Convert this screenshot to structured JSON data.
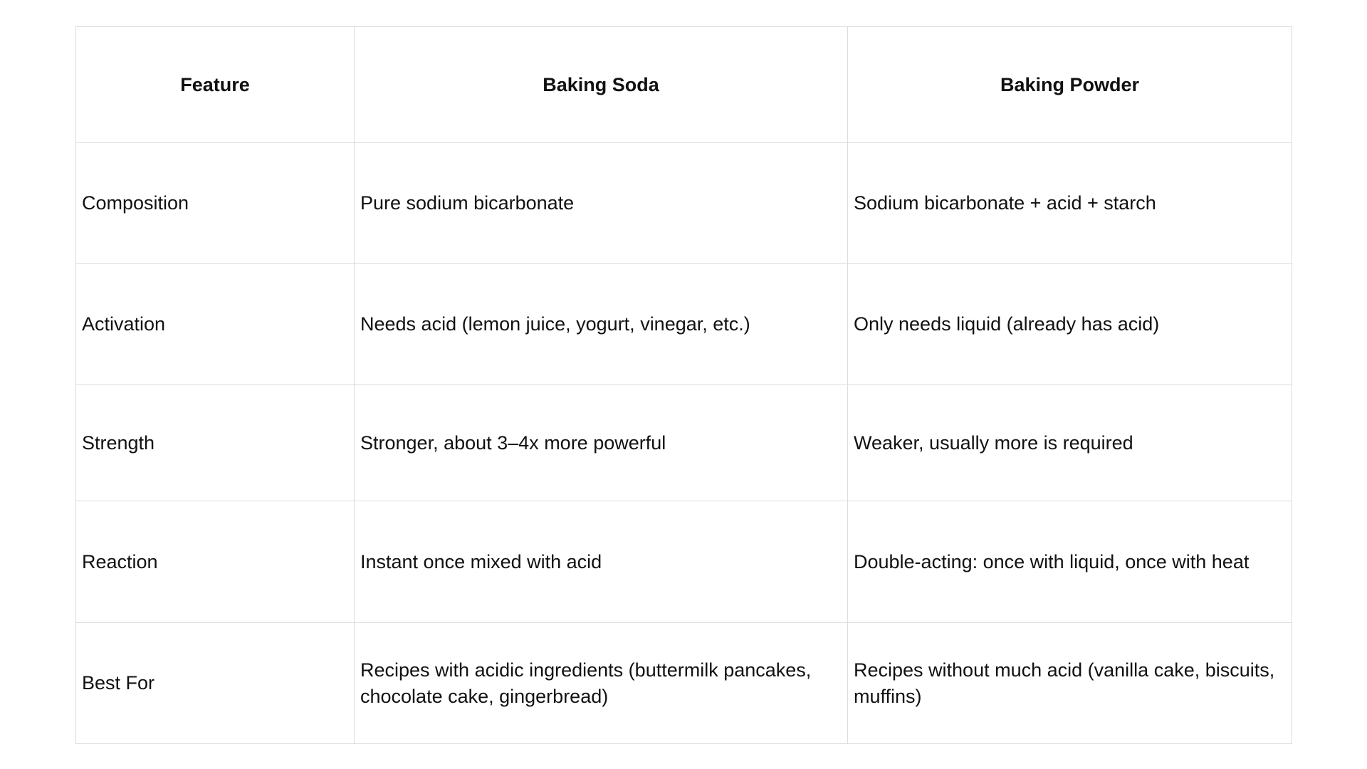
{
  "table": {
    "headers": [
      "Feature",
      "Baking Soda",
      "Baking Powder"
    ],
    "rows": [
      [
        "Composition",
        "Pure sodium bicarbonate",
        "Sodium bicarbonate + acid + starch"
      ],
      [
        "Activation",
        "Needs acid (lemon juice, yogurt, vinegar, etc.)",
        "Only needs liquid (already has acid)"
      ],
      [
        "Strength",
        "Stronger, about 3–4x more powerful",
        "Weaker, usually more is required"
      ],
      [
        "Reaction",
        "Instant once mixed with acid",
        "Double-acting: once with liquid, once with heat"
      ],
      [
        "Best For",
        "Recipes with acidic ingredients (buttermilk pancakes, chocolate cake, gingerbread)",
        "Recipes without much acid (vanilla cake, biscuits, muffins)"
      ]
    ]
  }
}
